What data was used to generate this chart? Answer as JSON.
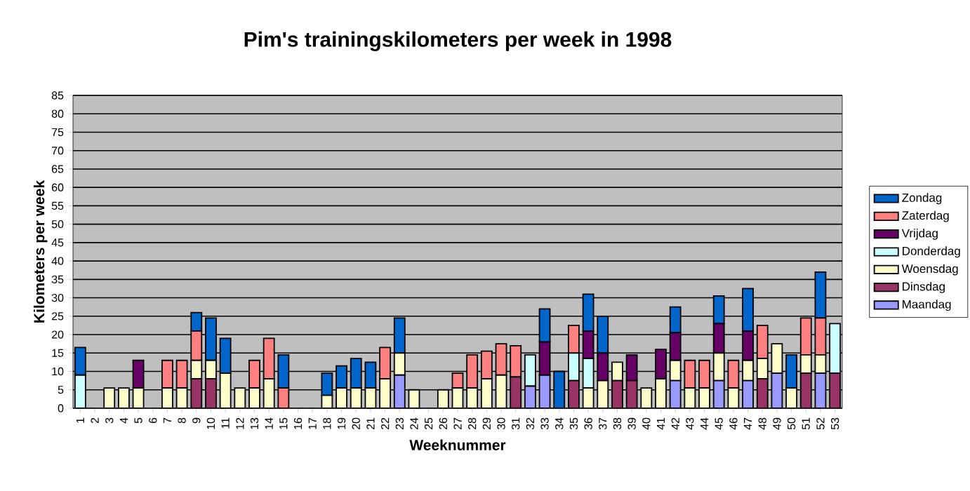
{
  "chart_data": {
    "type": "bar",
    "stacked": true,
    "title": "Pim's  trainingskilometers per week in 1998",
    "xlabel": "Weeknummer",
    "ylabel": "Kilometers per week",
    "categories": [
      "1",
      "2",
      "3",
      "4",
      "5",
      "6",
      "7",
      "8",
      "9",
      "10",
      "11",
      "12",
      "13",
      "14",
      "15",
      "16",
      "17",
      "18",
      "19",
      "20",
      "21",
      "22",
      "23",
      "24",
      "25",
      "26",
      "27",
      "28",
      "29",
      "30",
      "31",
      "32",
      "33",
      "34",
      "35",
      "36",
      "37",
      "38",
      "39",
      "40",
      "41",
      "42",
      "43",
      "44",
      "45",
      "46",
      "47",
      "48",
      "49",
      "50",
      "51",
      "52",
      "53"
    ],
    "series": [
      {
        "name": "Maandag",
        "color": "#9999ff",
        "values": [
          null,
          null,
          null,
          null,
          null,
          null,
          null,
          null,
          null,
          null,
          null,
          null,
          null,
          null,
          null,
          null,
          null,
          null,
          null,
          null,
          null,
          null,
          9,
          null,
          null,
          null,
          null,
          null,
          null,
          null,
          null,
          6,
          9,
          null,
          null,
          null,
          null,
          null,
          null,
          null,
          null,
          7.5,
          null,
          null,
          7.5,
          null,
          7.5,
          null,
          9.5,
          null,
          null,
          9.5,
          null
        ]
      },
      {
        "name": "Dinsdag",
        "color": "#993366",
        "values": [
          null,
          null,
          null,
          null,
          null,
          null,
          null,
          null,
          8,
          8,
          null,
          null,
          null,
          null,
          null,
          null,
          null,
          null,
          null,
          null,
          null,
          null,
          null,
          null,
          null,
          null,
          null,
          null,
          null,
          null,
          8.5,
          null,
          null,
          null,
          7.5,
          null,
          null,
          7.5,
          7.5,
          null,
          null,
          null,
          null,
          null,
          null,
          null,
          null,
          8,
          null,
          null,
          9.5,
          null,
          9.5
        ]
      },
      {
        "name": "Woensdag",
        "color": "#ffffcc",
        "values": [
          null,
          null,
          5.5,
          5.5,
          5.5,
          null,
          5.5,
          5.5,
          5,
          5,
          9.5,
          5.5,
          5.5,
          8,
          null,
          null,
          null,
          3.5,
          5.5,
          5.5,
          5.5,
          8,
          6,
          5,
          null,
          5,
          5.5,
          5.5,
          8,
          9,
          null,
          null,
          null,
          null,
          null,
          5.5,
          7.5,
          5,
          null,
          5.5,
          8,
          5.5,
          5.5,
          5.5,
          7.5,
          5.5,
          5.5,
          5.5,
          8,
          5.5,
          5,
          5,
          null
        ]
      },
      {
        "name": "Donderdag",
        "color": "#ccffff",
        "values": [
          9,
          null,
          null,
          null,
          null,
          null,
          null,
          null,
          null,
          null,
          null,
          null,
          null,
          null,
          null,
          null,
          null,
          null,
          null,
          null,
          null,
          null,
          null,
          null,
          null,
          null,
          null,
          null,
          null,
          null,
          null,
          8.5,
          null,
          null,
          7.5,
          8,
          null,
          null,
          null,
          null,
          null,
          null,
          null,
          null,
          null,
          null,
          null,
          null,
          null,
          null,
          null,
          null,
          13.5
        ]
      },
      {
        "name": "Vrijdag",
        "color": "#660066",
        "values": [
          null,
          null,
          null,
          null,
          7.5,
          null,
          null,
          null,
          null,
          null,
          null,
          null,
          null,
          null,
          null,
          null,
          null,
          null,
          null,
          null,
          null,
          null,
          null,
          null,
          null,
          null,
          null,
          null,
          null,
          null,
          null,
          null,
          9,
          null,
          null,
          7.5,
          7.5,
          null,
          7,
          null,
          8,
          7.5,
          null,
          null,
          8,
          null,
          8,
          null,
          null,
          null,
          null,
          null,
          null
        ]
      },
      {
        "name": "Zaterdag",
        "color": "#ff8080",
        "values": [
          null,
          null,
          null,
          null,
          null,
          null,
          7.5,
          7.5,
          8,
          null,
          null,
          null,
          7.5,
          11,
          5.5,
          null,
          null,
          null,
          null,
          null,
          null,
          8.5,
          null,
          null,
          null,
          null,
          4,
          9,
          7.5,
          8.5,
          8.5,
          null,
          null,
          null,
          7.5,
          null,
          null,
          null,
          null,
          null,
          null,
          null,
          7.5,
          7.5,
          null,
          7.5,
          null,
          9,
          null,
          null,
          10,
          10,
          null
        ]
      },
      {
        "name": "Zondag",
        "color": "#0066cc",
        "values": [
          7.5,
          null,
          null,
          null,
          null,
          null,
          null,
          null,
          5,
          11.5,
          9.5,
          null,
          null,
          null,
          9,
          null,
          null,
          6,
          6,
          8,
          7,
          null,
          9.5,
          null,
          null,
          null,
          null,
          null,
          null,
          null,
          null,
          null,
          9,
          10,
          null,
          10,
          10,
          null,
          null,
          null,
          null,
          7,
          null,
          null,
          7.5,
          null,
          11.5,
          null,
          null,
          9,
          null,
          12.5,
          null
        ]
      }
    ],
    "ylim": [
      0,
      85
    ],
    "yticks": [
      0,
      5,
      10,
      15,
      20,
      25,
      30,
      35,
      40,
      45,
      50,
      55,
      60,
      65,
      70,
      75,
      80,
      85
    ],
    "grid": "y",
    "legend": "right"
  }
}
